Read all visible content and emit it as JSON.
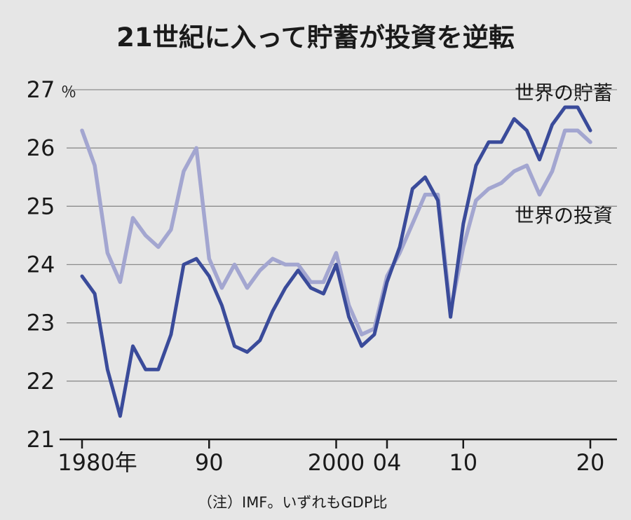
{
  "colors": {
    "background": "#e6e6e6",
    "savings": "#3a4b9a",
    "investment": "#a3a6d0",
    "grid": "#8c8c8c",
    "text": "#1a1a1a"
  },
  "chart_data": {
    "type": "line",
    "title": "21世紀に入って貯蓄が投資を逆転",
    "unit_label": "％",
    "note": "（注）IMF。いずれもGDP比",
    "ylim": [
      21,
      27
    ],
    "xlim": [
      1980,
      2020
    ],
    "yticks": [
      {
        "value": 21,
        "label": "21"
      },
      {
        "value": 22,
        "label": "22"
      },
      {
        "value": 23,
        "label": "23"
      },
      {
        "value": 24,
        "label": "24"
      },
      {
        "value": 25,
        "label": "25"
      },
      {
        "value": 26,
        "label": "26"
      },
      {
        "value": 27,
        "label": "27"
      }
    ],
    "xticks": [
      {
        "value": 1980,
        "label": "1980年"
      },
      {
        "value": 1990,
        "label": "90"
      },
      {
        "value": 2000,
        "label": "2000"
      },
      {
        "value": 2004,
        "label": "04"
      },
      {
        "value": 2010,
        "label": "10"
      },
      {
        "value": 2020,
        "label": "20"
      }
    ],
    "grid": true,
    "x": [
      1980,
      1981,
      1982,
      1983,
      1984,
      1985,
      1986,
      1987,
      1988,
      1989,
      1990,
      1991,
      1992,
      1993,
      1994,
      1995,
      1996,
      1997,
      1998,
      1999,
      2000,
      2001,
      2002,
      2003,
      2004,
      2005,
      2006,
      2007,
      2008,
      2009,
      2010,
      2011,
      2012,
      2013,
      2014,
      2015,
      2016,
      2017,
      2018,
      2019,
      2020
    ],
    "series": [
      {
        "name": "世界の貯蓄",
        "color": "#3a4b9a",
        "values": [
          23.8,
          23.5,
          22.2,
          21.4,
          22.6,
          22.2,
          22.2,
          22.8,
          24.0,
          24.1,
          23.8,
          23.3,
          22.6,
          22.5,
          22.7,
          23.2,
          23.6,
          23.9,
          23.6,
          23.5,
          24.0,
          23.1,
          22.6,
          22.8,
          23.7,
          24.3,
          25.3,
          25.5,
          25.1,
          23.1,
          24.7,
          25.7,
          26.1,
          26.1,
          26.5,
          26.3,
          25.8,
          26.4,
          26.7,
          26.7,
          26.3
        ]
      },
      {
        "name": "世界の投資",
        "color": "#a3a6d0",
        "values": [
          26.3,
          25.7,
          24.2,
          23.7,
          24.8,
          24.5,
          24.3,
          24.6,
          25.6,
          26.0,
          24.1,
          23.6,
          24.0,
          23.6,
          23.9,
          24.1,
          24.0,
          24.0,
          23.7,
          23.7,
          24.2,
          23.3,
          22.8,
          22.9,
          23.8,
          24.2,
          24.7,
          25.2,
          25.2,
          23.2,
          24.3,
          25.1,
          25.3,
          25.4,
          25.6,
          25.7,
          25.2,
          25.6,
          26.3,
          26.3,
          26.1
        ]
      }
    ]
  }
}
